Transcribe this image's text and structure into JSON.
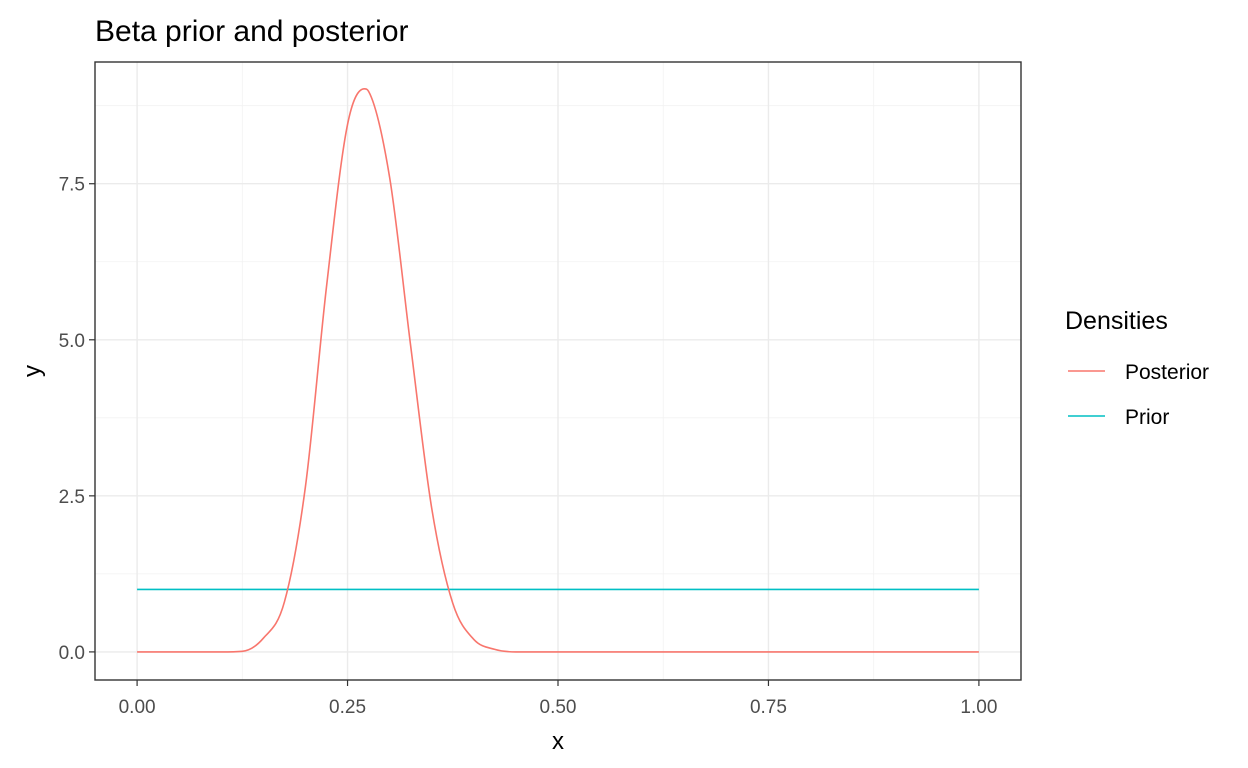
{
  "chart_data": {
    "type": "line",
    "title": "Beta prior and posterior",
    "xlabel": "x",
    "ylabel": "y",
    "xlim": [
      -0.05,
      1.05
    ],
    "ylim": [
      -0.45,
      9.45
    ],
    "x_ticks": [
      0,
      0.25,
      0.5,
      0.75,
      1
    ],
    "x_tick_labels": [
      "0.00",
      "0.25",
      "0.50",
      "0.75",
      "1.00"
    ],
    "y_ticks": [
      0,
      2.5,
      5,
      7.5
    ],
    "y_tick_labels": [
      "0.0",
      "2.5",
      "5.0",
      "7.5"
    ],
    "grid": true,
    "legend": {
      "title": "Densities",
      "placement": "right",
      "entries": [
        "Posterior",
        "Prior"
      ]
    },
    "series": [
      {
        "name": "Posterior",
        "color": "#F8766D",
        "x": [
          0.0,
          0.05,
          0.1,
          0.125,
          0.15,
          0.175,
          0.2,
          0.225,
          0.25,
          0.27,
          0.275,
          0.3,
          0.325,
          0.35,
          0.375,
          0.4,
          0.425,
          0.45,
          0.5,
          0.6,
          0.75,
          1.0
        ],
        "values": [
          0.0,
          0.0,
          0.0,
          0.01,
          0.22,
          0.8,
          2.65,
          5.85,
          8.45,
          9.02,
          8.98,
          7.6,
          4.9,
          2.3,
          0.78,
          0.2,
          0.04,
          0.0,
          0.0,
          0.0,
          0.0,
          0.0
        ]
      },
      {
        "name": "Prior",
        "color": "#00BFC4",
        "x": [
          0.0,
          1.0
        ],
        "values": [
          1.0,
          1.0
        ]
      }
    ]
  }
}
